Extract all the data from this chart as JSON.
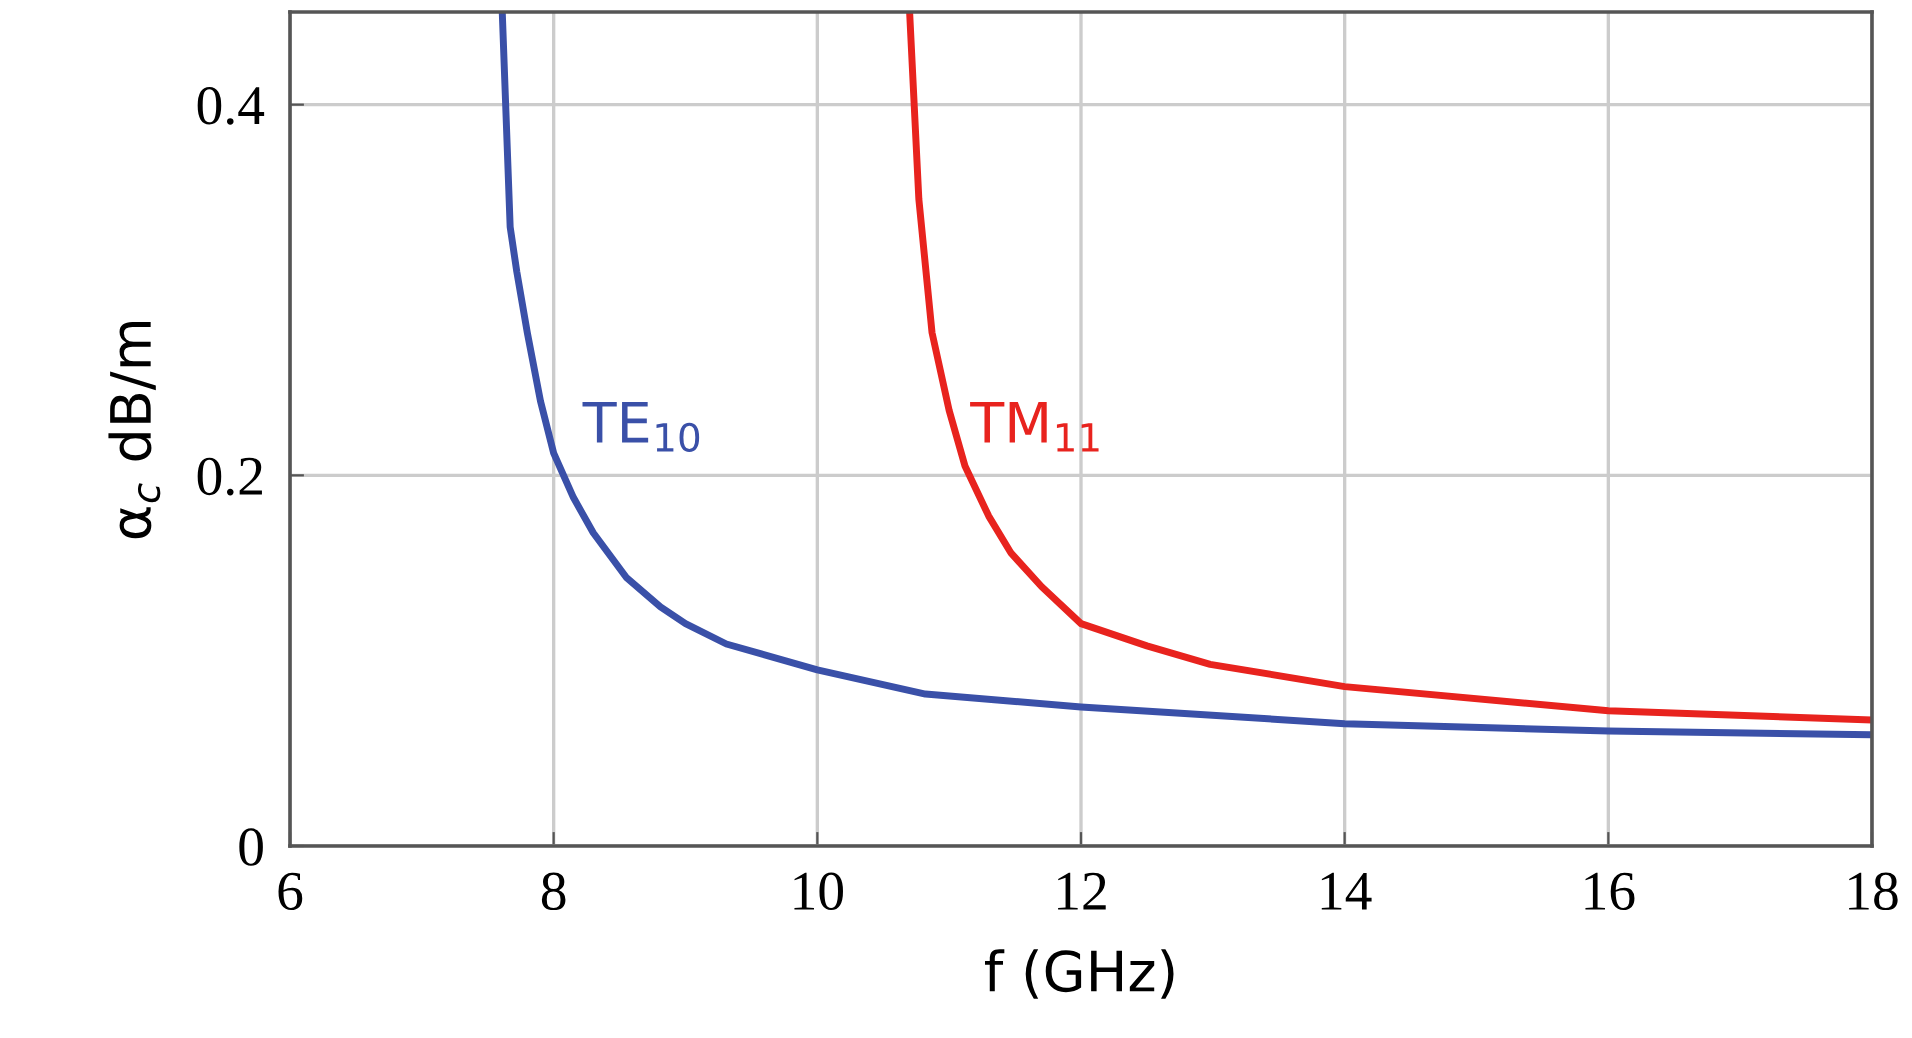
{
  "chart_data": {
    "type": "line",
    "xlabel": "f (GHz)",
    "ylabel": "α$_{c}$ dB/m",
    "xlim": [
      6,
      18
    ],
    "ylim": [
      0,
      0.45
    ],
    "xticks": [
      6,
      8,
      10,
      12,
      14,
      16,
      18
    ],
    "yticks": [
      0,
      0.2,
      0.4
    ],
    "grid": true,
    "line_style": "solid",
    "series": [
      {
        "color": "#3a50a8",
        "x": [
          7.61,
          7.67,
          7.72,
          7.8,
          7.9,
          8.0,
          8.15,
          8.3,
          8.55,
          8.81,
          9.0,
          9.31,
          10,
          10.82,
          12,
          14,
          16,
          18
        ],
        "values": [
          0.45,
          0.334,
          0.31,
          0.277,
          0.24,
          0.212,
          0.188,
          0.169,
          0.145,
          0.129,
          0.12,
          0.109,
          0.095,
          0.082,
          0.075,
          0.066,
          0.062,
          0.06
        ]
      },
      {
        "color": "#e8231e",
        "x": [
          10.7,
          10.77,
          10.87,
          11.0,
          11.12,
          11.3,
          11.47,
          11.7,
          12,
          12.5,
          12.98,
          14,
          16,
          18
        ],
        "values": [
          0.45,
          0.349,
          0.277,
          0.235,
          0.205,
          0.178,
          0.158,
          0.14,
          0.12,
          0.108,
          0.098,
          0.086,
          0.073,
          0.068
        ]
      }
    ],
    "annotations": [
      "TE$_{10}$",
      "TM$_{11}$"
    ]
  }
}
